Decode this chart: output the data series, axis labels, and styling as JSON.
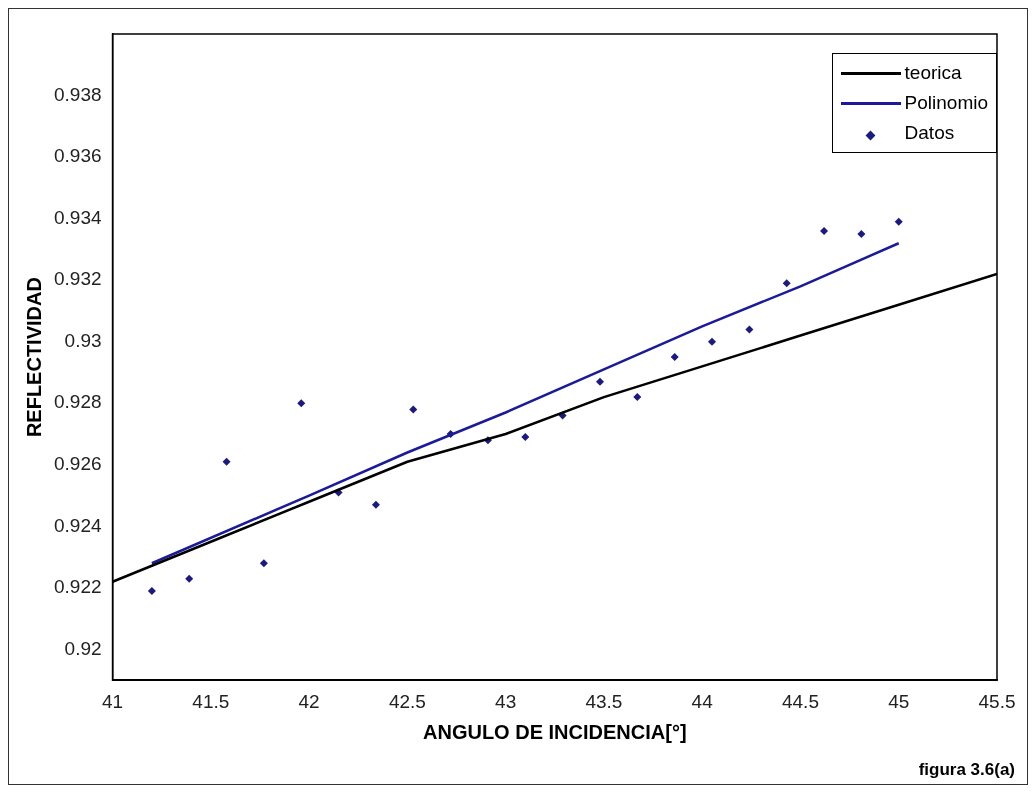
{
  "chart_data": {
    "type": "line",
    "xlabel": "ANGULO DE INCIDENCIA[°]",
    "ylabel": "REFLECTIVIDAD",
    "xlim": [
      41,
      45.5
    ],
    "xticks": [
      41,
      41.5,
      42,
      42.5,
      43,
      43.5,
      44,
      44.5,
      45,
      45.5
    ],
    "ylim": [
      0.919,
      0.94
    ],
    "yticks": [
      0.92,
      0.922,
      0.924,
      0.926,
      0.928,
      {
        "value": 0.93,
        "label": "0.93"
      },
      0.932,
      0.934,
      0.936,
      0.938
    ],
    "grid": false,
    "legend": "top right",
    "annotations": [
      "figura 3.6(a)"
    ],
    "series": [
      {
        "name": "teorica",
        "type": "line",
        "color": "#000000",
        "marker": "none",
        "line_style": "solid",
        "x": [
          41,
          41.5,
          42,
          42.5,
          43,
          43.5,
          44,
          44.5,
          45,
          45.5
        ],
        "values": [
          0.9222,
          0.9235,
          0.9248,
          0.9261,
          0.927,
          0.9282,
          0.9292,
          0.9302,
          0.9312,
          0.9322
        ]
      },
      {
        "name": "Polinomio",
        "type": "line",
        "color": "#1a1a9a",
        "marker": "none",
        "line_style": "solid",
        "x": [
          41.2,
          42,
          42.5,
          43,
          43.5,
          44,
          44.5,
          45
        ],
        "values": [
          0.9228,
          0.925,
          0.9264,
          0.9277,
          0.9291,
          0.9305,
          0.9318,
          0.9332
        ]
      },
      {
        "name": "Datos",
        "type": "scatter",
        "color": "#1a1a80",
        "marker": "diamond",
        "x": [
          41.2,
          41.39,
          41.58,
          41.77,
          41.96,
          42.15,
          42.34,
          42.53,
          42.72,
          42.91,
          43.1,
          43.29,
          43.48,
          43.67,
          43.86,
          44.05,
          44.24,
          44.43,
          44.62,
          44.81,
          45
        ],
        "values": [
          0.9219,
          0.9223,
          0.9261,
          0.9228,
          0.928,
          0.9251,
          0.9247,
          0.9278,
          0.927,
          0.9268,
          0.9269,
          0.9276,
          0.9287,
          0.9282,
          0.9295,
          0.93,
          0.9304,
          0.9319,
          0.9336,
          0.9335,
          0.9339
        ]
      }
    ]
  }
}
